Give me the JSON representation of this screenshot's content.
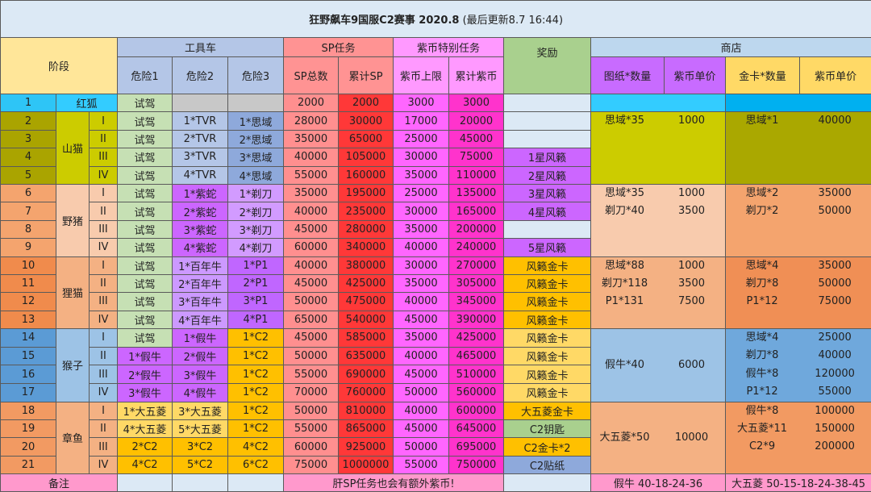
{
  "title": {
    "main": "狂野飙车9国服C2赛事 2020.8",
    "sub": " (最后更新8.7 16:44)"
  },
  "headers": {
    "stage": "阶段",
    "tool_car": "工具车",
    "sp_task": "SP任务",
    "coin_task": "紫币特别任务",
    "reward": "奖励",
    "shop": "商店",
    "danger1": "危险1",
    "danger2": "危险2",
    "danger3": "危险3",
    "sp_total": "SP总数",
    "sp_cum": "累计SP",
    "coin_limit": "紫币上限",
    "coin_cum": "累计紫币",
    "blueprint_qty": "图纸*数量",
    "coin_price1": "紫币单价",
    "goldcard_qty": "金卡*数量",
    "coin_price2": "紫币单价"
  },
  "colors": {
    "header_stage": "#ffe699",
    "header_tool": "#b4c6e7",
    "header_sp": "#ff9393",
    "header_coin": "#ff99ff",
    "header_reward": "#a9d08e",
    "header_shop": "#bdd7ee",
    "header_blueprint": "#c86bff",
    "header_goldcard": "#ffd966",
    "trial": "#c6e0b4",
    "sp": "#ff8f8f",
    "sp_cum": "#ff3838",
    "coin": "#ff66ff",
    "coin_cum": "#ff33cc",
    "empty": "#dce9f5",
    "footer": "#ff99cc"
  },
  "stages": [
    {
      "name": "红狐",
      "num_color": "#2ec5f6",
      "name_color": "#33ccff",
      "shop": {
        "left_color": "#33ccff",
        "right_color": "#00b0f0",
        "blueprints": [],
        "goldcards": []
      },
      "rows": [
        {
          "num": "1",
          "roman": "",
          "d": [
            [
              "试驾",
              "#c6e0b4"
            ],
            [
              "",
              "#c8c8c8"
            ],
            [
              "",
              "#c8c8c8"
            ]
          ],
          "sp": "2000",
          "sp_cum": "2000",
          "coin": "3000",
          "coin_cum": "3000",
          "reward": [
            "",
            "#dce9f5"
          ]
        }
      ]
    },
    {
      "name": "山猫",
      "num_color": "#aaa400",
      "name_color": "#cccc00",
      "shop": {
        "left_color": "#cccc00",
        "right_color": "#aaa800",
        "left_mid": false,
        "blueprints": [
          [
            "思域*35",
            "1000"
          ]
        ],
        "goldcards": [
          [
            "思域*1",
            "40000"
          ]
        ]
      },
      "rows": [
        {
          "num": "2",
          "roman": "I",
          "d": [
            [
              "试驾",
              "#c6e0b4"
            ],
            [
              "1*TVR",
              "#b4c6e7"
            ],
            [
              "1*思域",
              "#8ea9db"
            ]
          ],
          "sp": "28000",
          "sp_cum": "30000",
          "coin": "17000",
          "coin_cum": "20000",
          "reward": [
            "",
            "#dce9f5"
          ]
        },
        {
          "num": "3",
          "roman": "II",
          "d": [
            [
              "试驾",
              "#c6e0b4"
            ],
            [
              "2*TVR",
              "#b4c6e7"
            ],
            [
              "2*思域",
              "#8ea9db"
            ]
          ],
          "sp": "35000",
          "sp_cum": "65000",
          "coin": "25000",
          "coin_cum": "45000",
          "reward": [
            "",
            "#dce9f5"
          ]
        },
        {
          "num": "4",
          "roman": "III",
          "d": [
            [
              "试驾",
              "#c6e0b4"
            ],
            [
              "3*TVR",
              "#b4c6e7"
            ],
            [
              "3*思域",
              "#8ea9db"
            ]
          ],
          "sp": "40000",
          "sp_cum": "105000",
          "coin": "30000",
          "coin_cum": "75000",
          "reward": [
            "1星风籁",
            "#cc66ff"
          ]
        },
        {
          "num": "5",
          "roman": "IV",
          "d": [
            [
              "试驾",
              "#c6e0b4"
            ],
            [
              "4*TVR",
              "#b4c6e7"
            ],
            [
              "4*思域",
              "#8ea9db"
            ]
          ],
          "sp": "55000",
          "sp_cum": "160000",
          "coin": "35000",
          "coin_cum": "110000",
          "reward": [
            "2星风籁",
            "#cc66ff"
          ]
        }
      ]
    },
    {
      "name": "野猪",
      "num_color": "#f4a46e",
      "name_color": "#f8cbad",
      "shop": {
        "left_color": "#f8cbad",
        "right_color": "#f4a46e",
        "left_mid": false,
        "blueprints": [
          [
            "思域*35",
            "1000"
          ],
          [
            "剃刀*40",
            "3500"
          ]
        ],
        "goldcards": [
          [
            "思域*2",
            "35000"
          ],
          [
            "剃刀*2",
            "50000"
          ]
        ]
      },
      "rows": [
        {
          "num": "6",
          "roman": "I",
          "d": [
            [
              "试驾",
              "#c6e0b4"
            ],
            [
              "1*紫蛇",
              "#cc66ff"
            ],
            [
              "1*剃刀",
              "#d29bff"
            ]
          ],
          "sp": "35000",
          "sp_cum": "195000",
          "coin": "25000",
          "coin_cum": "135000",
          "reward": [
            "3星风籁",
            "#cc66ff"
          ]
        },
        {
          "num": "7",
          "roman": "II",
          "d": [
            [
              "试驾",
              "#c6e0b4"
            ],
            [
              "2*紫蛇",
              "#cc66ff"
            ],
            [
              "2*剃刀",
              "#d29bff"
            ]
          ],
          "sp": "40000",
          "sp_cum": "235000",
          "coin": "30000",
          "coin_cum": "165000",
          "reward": [
            "4星风籁",
            "#cc66ff"
          ]
        },
        {
          "num": "8",
          "roman": "III",
          "d": [
            [
              "试驾",
              "#c6e0b4"
            ],
            [
              "3*紫蛇",
              "#cc66ff"
            ],
            [
              "3*剃刀",
              "#d29bff"
            ]
          ],
          "sp": "45000",
          "sp_cum": "280000",
          "coin": "35000",
          "coin_cum": "200000",
          "reward": [
            "",
            "#dce9f5"
          ]
        },
        {
          "num": "9",
          "roman": "IV",
          "d": [
            [
              "试驾",
              "#c6e0b4"
            ],
            [
              "4*紫蛇",
              "#cc66ff"
            ],
            [
              "4*剃刀",
              "#d29bff"
            ]
          ],
          "sp": "60000",
          "sp_cum": "340000",
          "coin": "40000",
          "coin_cum": "240000",
          "reward": [
            "5星风籁",
            "#cc66ff"
          ]
        }
      ]
    },
    {
      "name": "狸猫",
      "num_color": "#f08b4c",
      "name_color": "#f4b183",
      "shop": {
        "left_color": "#f4b183",
        "right_color": "#f08f55",
        "left_mid": false,
        "blueprints": [
          [
            "思域*88",
            "1000"
          ],
          [
            "剃刀*118",
            "3500"
          ],
          [
            "P1*131",
            "7500"
          ]
        ],
        "goldcards": [
          [
            "思域*4",
            "35000"
          ],
          [
            "剃刀*8",
            "50000"
          ],
          [
            "P1*12",
            "75000"
          ]
        ]
      },
      "rows": [
        {
          "num": "10",
          "roman": "I",
          "d": [
            [
              "试驾",
              "#c6e0b4"
            ],
            [
              "1*百年牛",
              "#cc99ff"
            ],
            [
              "1*P1",
              "#c066ff"
            ]
          ],
          "sp": "40000",
          "sp_cum": "380000",
          "coin": "30000",
          "coin_cum": "270000",
          "reward": [
            "风籁金卡",
            "#ffc000"
          ]
        },
        {
          "num": "11",
          "roman": "II",
          "d": [
            [
              "试驾",
              "#c6e0b4"
            ],
            [
              "2*百年牛",
              "#cc99ff"
            ],
            [
              "2*P1",
              "#c066ff"
            ]
          ],
          "sp": "45000",
          "sp_cum": "425000",
          "coin": "35000",
          "coin_cum": "305000",
          "reward": [
            "风籁金卡",
            "#ffc000"
          ]
        },
        {
          "num": "12",
          "roman": "III",
          "d": [
            [
              "试驾",
              "#c6e0b4"
            ],
            [
              "3*百年牛",
              "#cc99ff"
            ],
            [
              "3*P1",
              "#c066ff"
            ]
          ],
          "sp": "50000",
          "sp_cum": "475000",
          "coin": "40000",
          "coin_cum": "345000",
          "reward": [
            "风籁金卡",
            "#ffc000"
          ]
        },
        {
          "num": "13",
          "roman": "IV",
          "d": [
            [
              "试驾",
              "#c6e0b4"
            ],
            [
              "4*百年牛",
              "#cc99ff"
            ],
            [
              "4*P1",
              "#c066ff"
            ]
          ],
          "sp": "65000",
          "sp_cum": "540000",
          "coin": "45000",
          "coin_cum": "390000",
          "reward": [
            "风籁金卡",
            "#ffc000"
          ]
        }
      ]
    },
    {
      "name": "猴子",
      "num_color": "#5b9bd5",
      "name_color": "#9dc3e6",
      "shop": {
        "left_color": "#9dc3e6",
        "right_color": "#6fa8dc",
        "left_mid": true,
        "blueprints": [
          [
            "假牛*40",
            "6000"
          ]
        ],
        "goldcards": [
          [
            "思域*4",
            "25000"
          ],
          [
            "剃刀*8",
            "40000"
          ],
          [
            "假牛*8",
            "120000"
          ],
          [
            "P1*12",
            "55000"
          ]
        ]
      },
      "rows": [
        {
          "num": "14",
          "roman": "I",
          "d": [
            [
              "试驾",
              "#c6e0b4"
            ],
            [
              "1*假牛",
              "#cc66ff"
            ],
            [
              "1*C2",
              "#ffc000"
            ]
          ],
          "sp": "45000",
          "sp_cum": "585000",
          "coin": "35000",
          "coin_cum": "425000",
          "reward": [
            "风籁金卡",
            "#ffd966"
          ]
        },
        {
          "num": "15",
          "roman": "II",
          "d": [
            [
              "1*假牛",
              "#cc66ff"
            ],
            [
              "2*假牛",
              "#cc66ff"
            ],
            [
              "1*C2",
              "#ffc000"
            ]
          ],
          "sp": "50000",
          "sp_cum": "635000",
          "coin": "40000",
          "coin_cum": "465000",
          "reward": [
            "风籁金卡",
            "#ffd966"
          ]
        },
        {
          "num": "16",
          "roman": "III",
          "d": [
            [
              "2*假牛",
              "#cc66ff"
            ],
            [
              "3*假牛",
              "#cc66ff"
            ],
            [
              "1*C2",
              "#ffc000"
            ]
          ],
          "sp": "55000",
          "sp_cum": "690000",
          "coin": "45000",
          "coin_cum": "510000",
          "reward": [
            "风籁金卡",
            "#ffd966"
          ]
        },
        {
          "num": "17",
          "roman": "IV",
          "d": [
            [
              "3*假牛",
              "#cc66ff"
            ],
            [
              "4*假牛",
              "#cc66ff"
            ],
            [
              "1*C2",
              "#ffc000"
            ]
          ],
          "sp": "70000",
          "sp_cum": "760000",
          "coin": "50000",
          "coin_cum": "560000",
          "reward": [
            "风籁金卡",
            "#ffd966"
          ]
        }
      ]
    },
    {
      "name": "章鱼",
      "num_color": "#f29a62",
      "name_color": "#f4b183",
      "shop": {
        "left_color": "#f4b183",
        "right_color": "#f29a62",
        "left_mid": true,
        "blueprints": [
          [
            "大五菱*50",
            "10000"
          ]
        ],
        "goldcards": [
          [
            "假牛*8",
            "100000"
          ],
          [
            "大五菱*11",
            "150000"
          ],
          [
            "C2*9",
            "200000"
          ]
        ]
      },
      "rows": [
        {
          "num": "18",
          "roman": "I",
          "d": [
            [
              "1*大五菱",
              "#ffd966"
            ],
            [
              "3*大五菱",
              "#ffd966"
            ],
            [
              "1*C2",
              "#ffc000"
            ]
          ],
          "sp": "50000",
          "sp_cum": "810000",
          "coin": "40000",
          "coin_cum": "600000",
          "reward": [
            "大五菱金卡",
            "#ffc000"
          ]
        },
        {
          "num": "19",
          "roman": "II",
          "d": [
            [
              "4*大五菱",
              "#ffd966"
            ],
            [
              "5*大五菱",
              "#ffd966"
            ],
            [
              "1*C2",
              "#ffc000"
            ]
          ],
          "sp": "55000",
          "sp_cum": "865000",
          "coin": "45000",
          "coin_cum": "645000",
          "reward": [
            "C2钥匙",
            "#a9d08e"
          ]
        },
        {
          "num": "20",
          "roman": "III",
          "d": [
            [
              "2*C2",
              "#ffc000"
            ],
            [
              "3*C2",
              "#ffc000"
            ],
            [
              "4*C2",
              "#ffc000"
            ]
          ],
          "sp": "60000",
          "sp_cum": "925000",
          "coin": "50000",
          "coin_cum": "695000",
          "reward": [
            "C2金卡*2",
            "#ffc000"
          ]
        },
        {
          "num": "21",
          "roman": "IV",
          "d": [
            [
              "4*C2",
              "#ffc000"
            ],
            [
              "5*C2",
              "#ffc000"
            ],
            [
              "6*C2",
              "#ffc000"
            ]
          ],
          "sp": "75000",
          "sp_cum": "1000000",
          "coin": "55000",
          "coin_cum": "750000",
          "reward": [
            "C2贴纸",
            "#8ea9db"
          ]
        }
      ]
    }
  ],
  "footer": {
    "label": "备注",
    "note": "肝SP任务也会有额外紫币!",
    "shop_left": "假牛 40-18-24-36",
    "shop_right": "大五菱 50-15-18-24-38-45"
  }
}
